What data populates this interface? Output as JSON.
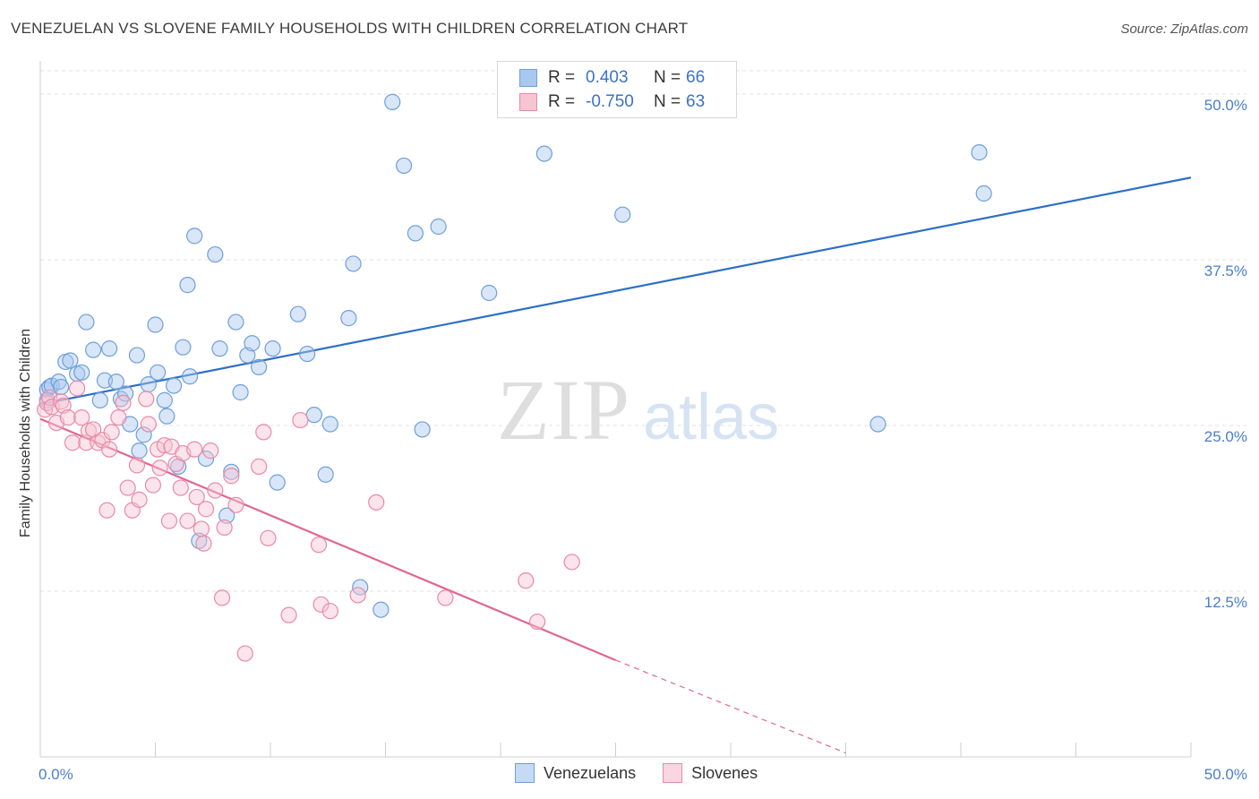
{
  "title": "VENEZUELAN VS SLOVENE FAMILY HOUSEHOLDS WITH CHILDREN CORRELATION CHART",
  "source": "Source: ZipAtlas.com",
  "watermark": {
    "zip": "ZIP",
    "atlas": "atlas"
  },
  "legend": {
    "r_label": "R =",
    "n_label": "N =",
    "rows": [
      {
        "r": "0.403",
        "n": "66",
        "color": "#a9c8ef",
        "border": "#6f9fd8"
      },
      {
        "r": "-0.750",
        "n": "63",
        "color": "#f6c4d3",
        "border": "#e88aa8"
      }
    ]
  },
  "bottom_legend": [
    {
      "label": "Venezuelans",
      "color": "#c5daf5",
      "border": "#6f9fd8"
    },
    {
      "label": "Slovenes",
      "color": "#fbd5e1",
      "border": "#e88aa8"
    }
  ],
  "chart_data": {
    "type": "scatter",
    "title": "VENEZUELAN VS SLOVENE FAMILY HOUSEHOLDS WITH CHILDREN CORRELATION CHART",
    "xlabel": "",
    "ylabel": "Family Households with Children",
    "xlim": [
      0,
      50
    ],
    "ylim": [
      0,
      52.5
    ],
    "x_tick_labels": [
      "0.0%",
      "50.0%"
    ],
    "y_tick_values": [
      12.5,
      25.0,
      37.5,
      50.0
    ],
    "y_tick_labels": [
      "12.5%",
      "25.0%",
      "37.5%",
      "50.0%"
    ],
    "grid": true,
    "legend_position": "top-center",
    "series": [
      {
        "name": "Venezuelans",
        "color": "#6f9fd8",
        "fill": "#a9c8ef",
        "line_color": "#2d6fc7",
        "trend": {
          "x": [
            0,
            50
          ],
          "y": [
            26.6,
            43.7
          ]
        },
        "points": [
          [
            0.3,
            27.7
          ],
          [
            0.4,
            27.9
          ],
          [
            0.3,
            26.9
          ],
          [
            0.5,
            28.0
          ],
          [
            0.8,
            28.3
          ],
          [
            0.9,
            27.9
          ],
          [
            1.1,
            29.8
          ],
          [
            1.3,
            29.9
          ],
          [
            1.6,
            28.9
          ],
          [
            1.8,
            29.0
          ],
          [
            2.0,
            32.8
          ],
          [
            2.3,
            30.7
          ],
          [
            2.6,
            26.9
          ],
          [
            2.8,
            28.4
          ],
          [
            3.0,
            30.8
          ],
          [
            3.3,
            28.3
          ],
          [
            3.5,
            27.0
          ],
          [
            3.7,
            27.4
          ],
          [
            3.9,
            25.1
          ],
          [
            4.2,
            30.3
          ],
          [
            4.3,
            23.1
          ],
          [
            4.5,
            24.3
          ],
          [
            4.7,
            28.1
          ],
          [
            5.0,
            32.6
          ],
          [
            5.1,
            29.0
          ],
          [
            5.4,
            26.9
          ],
          [
            5.5,
            25.7
          ],
          [
            5.8,
            28.0
          ],
          [
            6.0,
            21.9
          ],
          [
            6.2,
            30.9
          ],
          [
            6.4,
            35.6
          ],
          [
            6.5,
            28.7
          ],
          [
            6.7,
            39.3
          ],
          [
            6.9,
            16.3
          ],
          [
            7.2,
            22.5
          ],
          [
            7.6,
            37.9
          ],
          [
            7.8,
            30.8
          ],
          [
            8.1,
            18.2
          ],
          [
            8.3,
            21.5
          ],
          [
            8.5,
            32.8
          ],
          [
            8.7,
            27.5
          ],
          [
            9.0,
            30.3
          ],
          [
            9.2,
            31.2
          ],
          [
            9.5,
            29.4
          ],
          [
            10.1,
            30.8
          ],
          [
            10.3,
            20.7
          ],
          [
            11.2,
            33.4
          ],
          [
            11.6,
            30.4
          ],
          [
            11.9,
            25.8
          ],
          [
            12.4,
            21.3
          ],
          [
            12.6,
            25.1
          ],
          [
            13.4,
            33.1
          ],
          [
            13.6,
            37.2
          ],
          [
            13.9,
            12.8
          ],
          [
            14.8,
            11.1
          ],
          [
            15.3,
            49.4
          ],
          [
            15.8,
            44.6
          ],
          [
            16.3,
            39.5
          ],
          [
            16.6,
            24.7
          ],
          [
            17.3,
            40.0
          ],
          [
            19.5,
            35.0
          ],
          [
            21.9,
            45.5
          ],
          [
            25.3,
            40.9
          ],
          [
            36.4,
            25.1
          ],
          [
            40.8,
            45.6
          ],
          [
            41.0,
            42.5
          ]
        ]
      },
      {
        "name": "Slovenes",
        "color": "#e88aa8",
        "fill": "#f6c4d3",
        "line_color": "#e06692",
        "trend": {
          "x": [
            0,
            25
          ],
          "y": [
            25.5,
            7.3
          ]
        },
        "trend_dashed": {
          "x": [
            25,
            35
          ],
          "y": [
            7.3,
            0.3
          ]
        },
        "points": [
          [
            0.2,
            26.2
          ],
          [
            0.3,
            26.7
          ],
          [
            0.4,
            27.1
          ],
          [
            0.5,
            26.4
          ],
          [
            0.7,
            25.2
          ],
          [
            0.9,
            26.8
          ],
          [
            1.0,
            26.5
          ],
          [
            1.2,
            25.6
          ],
          [
            1.4,
            23.7
          ],
          [
            1.6,
            27.8
          ],
          [
            1.8,
            25.6
          ],
          [
            2.0,
            23.7
          ],
          [
            2.1,
            24.6
          ],
          [
            2.3,
            24.7
          ],
          [
            2.5,
            23.7
          ],
          [
            2.7,
            23.9
          ],
          [
            2.9,
            18.6
          ],
          [
            3.0,
            23.2
          ],
          [
            3.1,
            24.5
          ],
          [
            3.4,
            25.6
          ],
          [
            3.6,
            26.7
          ],
          [
            3.8,
            20.3
          ],
          [
            4.0,
            18.6
          ],
          [
            4.2,
            22.0
          ],
          [
            4.3,
            19.4
          ],
          [
            4.6,
            27.0
          ],
          [
            4.7,
            25.1
          ],
          [
            4.9,
            20.5
          ],
          [
            5.1,
            23.2
          ],
          [
            5.2,
            21.8
          ],
          [
            5.4,
            23.5
          ],
          [
            5.6,
            17.8
          ],
          [
            5.7,
            23.4
          ],
          [
            5.9,
            22.1
          ],
          [
            6.1,
            20.3
          ],
          [
            6.2,
            22.9
          ],
          [
            6.4,
            17.8
          ],
          [
            6.7,
            23.2
          ],
          [
            6.8,
            19.6
          ],
          [
            7.0,
            17.2
          ],
          [
            7.1,
            16.1
          ],
          [
            7.2,
            18.7
          ],
          [
            7.4,
            23.1
          ],
          [
            7.6,
            20.1
          ],
          [
            7.9,
            12.0
          ],
          [
            8.0,
            17.3
          ],
          [
            8.3,
            21.2
          ],
          [
            8.5,
            19.0
          ],
          [
            8.9,
            7.8
          ],
          [
            9.5,
            21.9
          ],
          [
            9.7,
            24.5
          ],
          [
            9.9,
            16.5
          ],
          [
            10.8,
            10.7
          ],
          [
            11.3,
            25.4
          ],
          [
            12.1,
            16.0
          ],
          [
            12.2,
            11.5
          ],
          [
            12.6,
            11.0
          ],
          [
            13.8,
            12.2
          ],
          [
            14.6,
            19.2
          ],
          [
            17.6,
            12.0
          ],
          [
            21.1,
            13.3
          ],
          [
            21.6,
            10.2
          ],
          [
            23.1,
            14.7
          ]
        ]
      }
    ]
  }
}
